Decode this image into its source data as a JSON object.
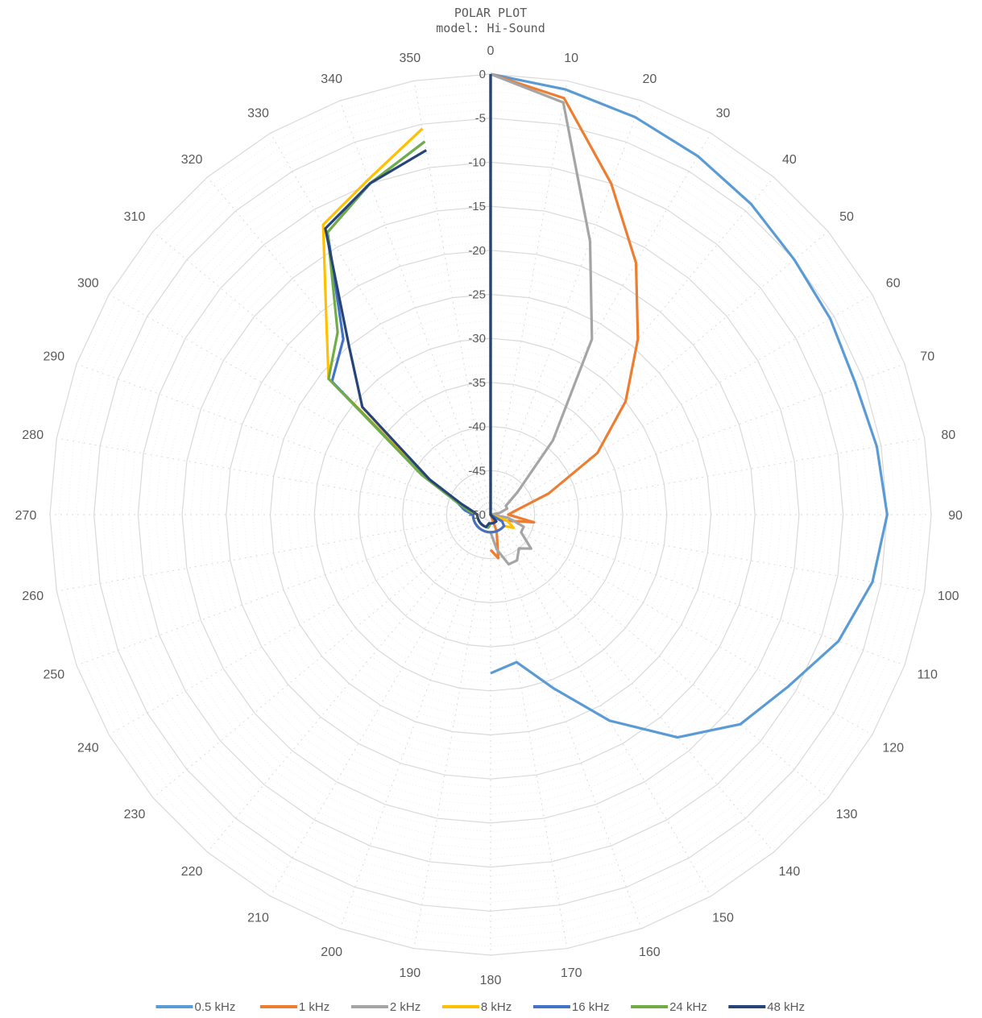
{
  "chart_data": {
    "type": "radar",
    "title": "POLAR PLOT",
    "subtitle": "model: Hi-Sound",
    "angles": [
      0,
      10,
      20,
      30,
      40,
      50,
      60,
      70,
      80,
      90,
      100,
      110,
      120,
      130,
      140,
      150,
      160,
      170,
      180,
      190,
      200,
      210,
      220,
      230,
      240,
      250,
      260,
      270,
      280,
      290,
      300,
      310,
      320,
      330,
      340,
      350
    ],
    "radial_ticks": [
      "0",
      "-5",
      "-10",
      "-15",
      "-20",
      "-25",
      "-30",
      "-35",
      "-40",
      "-45",
      "-50"
    ],
    "rlim": [
      -50,
      0
    ],
    "grid": true,
    "legend_position": "bottom",
    "series": [
      {
        "name": "0.5 kHz",
        "color": "#5B9BD5",
        "values": [
          0,
          -1,
          -2,
          -3,
          -4,
          -5,
          -5.5,
          -6,
          -5.5,
          -5,
          -6,
          -8,
          -11,
          -13,
          -17,
          -23,
          -29,
          -33,
          -32,
          null,
          null,
          null,
          null,
          null,
          null,
          null,
          null,
          null,
          null,
          null,
          null,
          null,
          null,
          null,
          null,
          null
        ]
      },
      {
        "name": "1 kHz",
        "color": "#ED7D31",
        "values": [
          0,
          -2,
          -10,
          -17,
          -24,
          -30,
          -36,
          -43,
          -47,
          -48,
          -45,
          -48,
          -49,
          -50,
          -50,
          -50,
          -48,
          -45,
          -46,
          null,
          null,
          null,
          null,
          null,
          null,
          null,
          null,
          null,
          null,
          null,
          null,
          null,
          null,
          null,
          null,
          null
        ]
      },
      {
        "name": "2 kHz",
        "color": "#A5A5A5",
        "values": [
          0,
          -2.5,
          -17,
          -27,
          -39,
          -46,
          -48,
          -48,
          -49,
          -50,
          -48,
          -46,
          -46,
          -44,
          -45,
          -44,
          -44,
          -46,
          -48,
          null,
          null,
          null,
          null,
          null,
          null,
          null,
          null,
          null,
          null,
          null,
          null,
          null,
          null,
          null,
          null,
          null
        ]
      },
      {
        "name": "8 kHz",
        "color": "#FFC000",
        "values": [
          0,
          -50,
          -50,
          -50,
          -50,
          -50,
          -50,
          -50,
          -50,
          -50,
          -50,
          -48,
          -47,
          -48,
          -48,
          -48,
          -48,
          -48,
          -48,
          -48,
          -48,
          -48,
          -48,
          -48,
          -48,
          -48,
          -48,
          -48,
          -47,
          -46,
          -42,
          -26,
          -21,
          -12,
          -9.5,
          -5.5
        ]
      },
      {
        "name": "16 kHz",
        "color": "#4472C4",
        "values": [
          0,
          -50,
          -50,
          -50,
          -50,
          -50,
          -50,
          -50,
          -50,
          -50,
          -50,
          -50,
          -48.5,
          -48,
          -48,
          -48,
          -48,
          -48,
          -48,
          -48,
          -48,
          -48,
          -48,
          -48,
          -48,
          -48,
          -48,
          -48,
          -47,
          -46,
          -41,
          -26.5,
          -24,
          -13,
          -10,
          -7
        ]
      },
      {
        "name": "24 kHz",
        "color": "#70AD47",
        "values": [
          0,
          -50,
          -50,
          -50,
          -50,
          -50,
          -50,
          -50,
          -50,
          -50,
          -50,
          -50,
          -50,
          -50,
          -49,
          -49,
          -49,
          -49,
          -49,
          -48.5,
          -48.5,
          -48.5,
          -48.5,
          -48.5,
          -48.5,
          -48.5,
          -48.5,
          -48.5,
          -47.5,
          -46,
          -41,
          -26,
          -23,
          -13,
          -10,
          -7
        ]
      },
      {
        "name": "48 kHz",
        "color": "#264478",
        "values": [
          0,
          -50,
          -50,
          -50,
          -50,
          -50,
          -50,
          -50,
          -50,
          -50,
          -50,
          -50,
          -50,
          -50,
          -49,
          -49,
          -49,
          -49,
          -49,
          -49,
          -48.5,
          -48.5,
          -48.5,
          -48.5,
          -48.5,
          -48.5,
          -48.5,
          -48.5,
          -48,
          -46.5,
          -42,
          -31,
          -25,
          -12.5,
          -10,
          -8
        ]
      }
    ]
  }
}
